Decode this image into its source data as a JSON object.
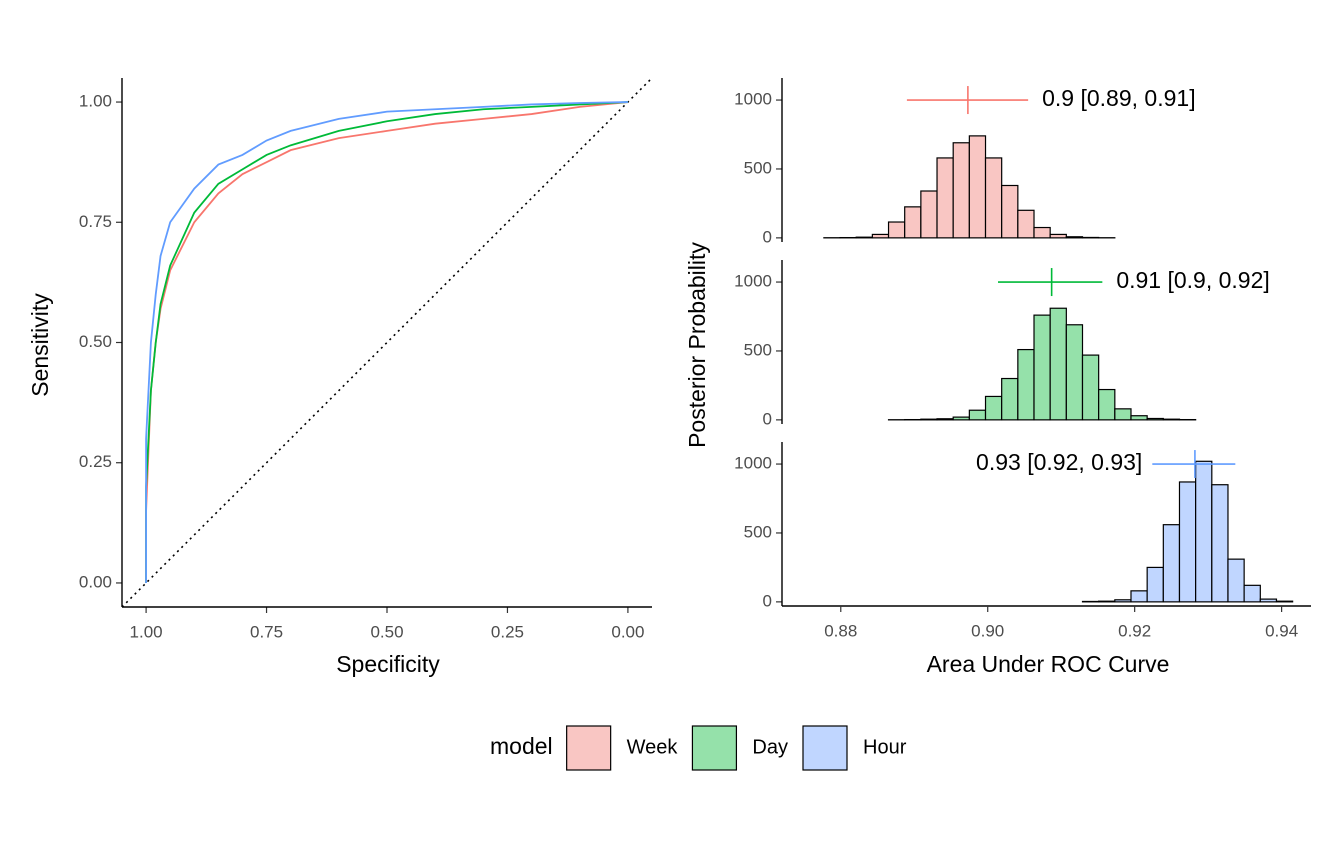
{
  "chart_data": [
    {
      "type": "line",
      "x_label": "Specificity",
      "y_label": "Sensitivity",
      "x": [
        1,
        1,
        0.99,
        0.98,
        0.97,
        0.95,
        0.9,
        0.85,
        0.8,
        0.75,
        0.7,
        0.6,
        0.5,
        0.4,
        0.3,
        0.2,
        0.1,
        0
      ],
      "series": [
        {
          "name": "Week",
          "color": "#F8766D",
          "values": [
            0,
            0.15,
            0.4,
            0.5,
            0.57,
            0.65,
            0.75,
            0.81,
            0.85,
            0.875,
            0.9,
            0.925,
            0.94,
            0.955,
            0.965,
            0.975,
            0.99,
            1
          ]
        },
        {
          "name": "Day",
          "color": "#00BA38",
          "values": [
            0,
            0.2,
            0.4,
            0.5,
            0.58,
            0.66,
            0.77,
            0.83,
            0.86,
            0.89,
            0.91,
            0.94,
            0.96,
            0.975,
            0.985,
            0.99,
            0.995,
            1
          ]
        },
        {
          "name": "Hour",
          "color": "#619CFF",
          "values": [
            0,
            0.3,
            0.5,
            0.6,
            0.68,
            0.75,
            0.82,
            0.87,
            0.89,
            0.92,
            0.94,
            0.965,
            0.98,
            0.985,
            0.99,
            0.995,
            0.998,
            1
          ]
        }
      ],
      "xlim": [
        1.05,
        -0.05
      ],
      "ylim": [
        -0.05,
        1.05
      ],
      "xticks": [
        {
          "value": 1,
          "label": "1.00"
        },
        {
          "value": 0.75,
          "label": "0.75"
        },
        {
          "value": 0.5,
          "label": "0.50"
        },
        {
          "value": 0.25,
          "label": "0.25"
        },
        {
          "value": 0,
          "label": "0.00"
        }
      ],
      "yticks": [
        {
          "value": 0,
          "label": "0.00"
        },
        {
          "value": 0.25,
          "label": "0.25"
        },
        {
          "value": 0.5,
          "label": "0.50"
        },
        {
          "value": 0.75,
          "label": "0.75"
        },
        {
          "value": 1,
          "label": "1.00"
        }
      ],
      "reference_line": true,
      "legend": "bottom",
      "legend_title": "model"
    },
    {
      "type": "histogram",
      "x_label": "Area Under ROC Curve",
      "y_label": "Posterior Probability",
      "bins": [
        0.8755,
        0.8777,
        0.8799,
        0.8821,
        0.8843,
        0.8865,
        0.8887,
        0.8909,
        0.8931,
        0.8953,
        0.8975,
        0.8997,
        0.9019,
        0.9041,
        0.9063,
        0.9085,
        0.9107,
        0.9129,
        0.9151,
        0.9173,
        0.9195,
        0.9217,
        0.9239,
        0.9261,
        0.9283,
        0.9305,
        0.9327,
        0.9349,
        0.9371,
        0.9393,
        0.9415
      ],
      "xlim": [
        0.872,
        0.944
      ],
      "xticks": [
        0.88,
        {
          "value": 0.9,
          "label": "0.90"
        },
        0.92,
        0.94
      ],
      "ylim": [
        -30,
        1160
      ],
      "yticks": [
        0,
        500,
        1000
      ],
      "facets": [
        {
          "color": "#F8766D",
          "fill": "#F9C6C3",
          "counts": [
            0,
            1,
            2,
            5,
            25,
            115,
            225,
            340,
            580,
            690,
            740,
            580,
            380,
            200,
            75,
            25,
            8,
            3,
            1,
            0,
            0,
            0,
            0,
            0,
            0,
            0,
            0,
            0,
            0,
            0
          ],
          "estimate": 0.8973,
          "lower": 0.889,
          "upper": 0.9055,
          "interval_label": "0.9 [0.89, 0.91]"
        },
        {
          "color": "#00BA38",
          "fill": "#95E1AA",
          "counts": [
            0,
            0,
            0,
            0,
            0,
            1,
            2,
            5,
            8,
            20,
            70,
            170,
            300,
            510,
            760,
            810,
            690,
            470,
            220,
            80,
            30,
            10,
            5,
            2,
            0,
            0,
            0,
            0,
            0,
            0
          ],
          "estimate": 0.9087,
          "lower": 0.9014,
          "upper": 0.9156,
          "interval_label": "0.91 [0.9, 0.92]"
        },
        {
          "color": "#619CFF",
          "fill": "#C0D6FF",
          "counts": [
            0,
            0,
            0,
            0,
            0,
            0,
            0,
            0,
            0,
            0,
            0,
            0,
            0,
            0,
            0,
            0,
            0,
            3,
            5,
            15,
            80,
            250,
            560,
            870,
            1020,
            850,
            310,
            120,
            20,
            5
          ],
          "estimate": 0.9282,
          "lower": 0.9224,
          "upper": 0.9337,
          "interval_label": "0.93 [0.92, 0.93]"
        }
      ]
    }
  ]
}
